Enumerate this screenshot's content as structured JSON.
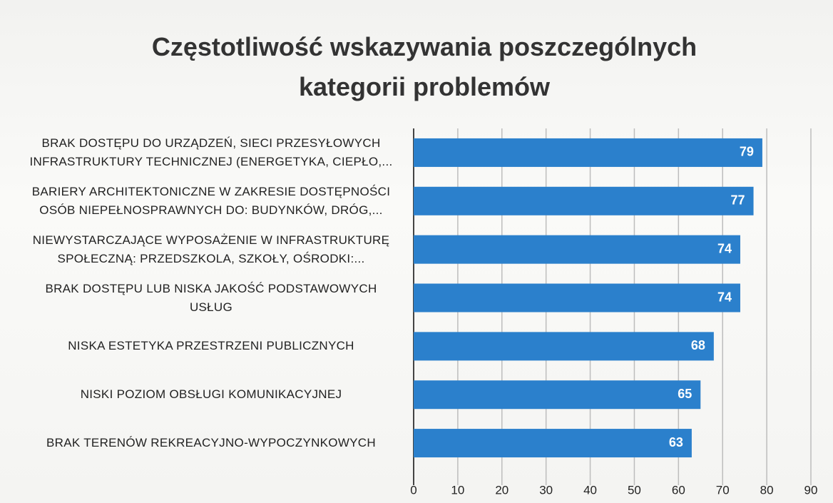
{
  "chart_data": {
    "type": "barh",
    "title": "Częstotliwość wskazywania poszczególnych\nkategorii problemów",
    "categories": [
      "BRAK DOSTĘPU DO URZĄDZEŃ, SIECI PRZESYŁOWYCH\nINFRASTRUKTURY TECHNICZNEJ (ENERGETYKA, CIEPŁO,...",
      "BARIERY ARCHITEKTONICZNE W ZAKRESIE DOSTĘPNOŚCI\nOSÓB NIEPEŁNOSPRAWNYCH DO: BUDYNKÓW, DRÓG,...",
      "NIEWYSTARCZAJĄCE WYPOSAŻENIE W INFRASTRUKTURĘ\nSPOŁECZNĄ: PRZEDSZKOLA, SZKOŁY, OŚRODKI:...",
      "BRAK DOSTĘPU LUB NISKA JAKOŚĆ PODSTAWOWYCH\nUSŁUG",
      "NISKA ESTETYKA PRZESTRZENI PUBLICZNYCH",
      "NISKI POZIOM OBSŁUGI KOMUNIKACYJNEJ",
      "BRAK TERENÓW REKREACYJNO-WYPOCZYNKOWYCH"
    ],
    "values": [
      79,
      77,
      74,
      74,
      68,
      65,
      63
    ],
    "color": "#2b80cc",
    "xlim": [
      0,
      90
    ],
    "xticks": [
      0,
      10,
      20,
      30,
      40,
      50,
      60,
      70,
      80,
      90
    ],
    "grid": true
  }
}
